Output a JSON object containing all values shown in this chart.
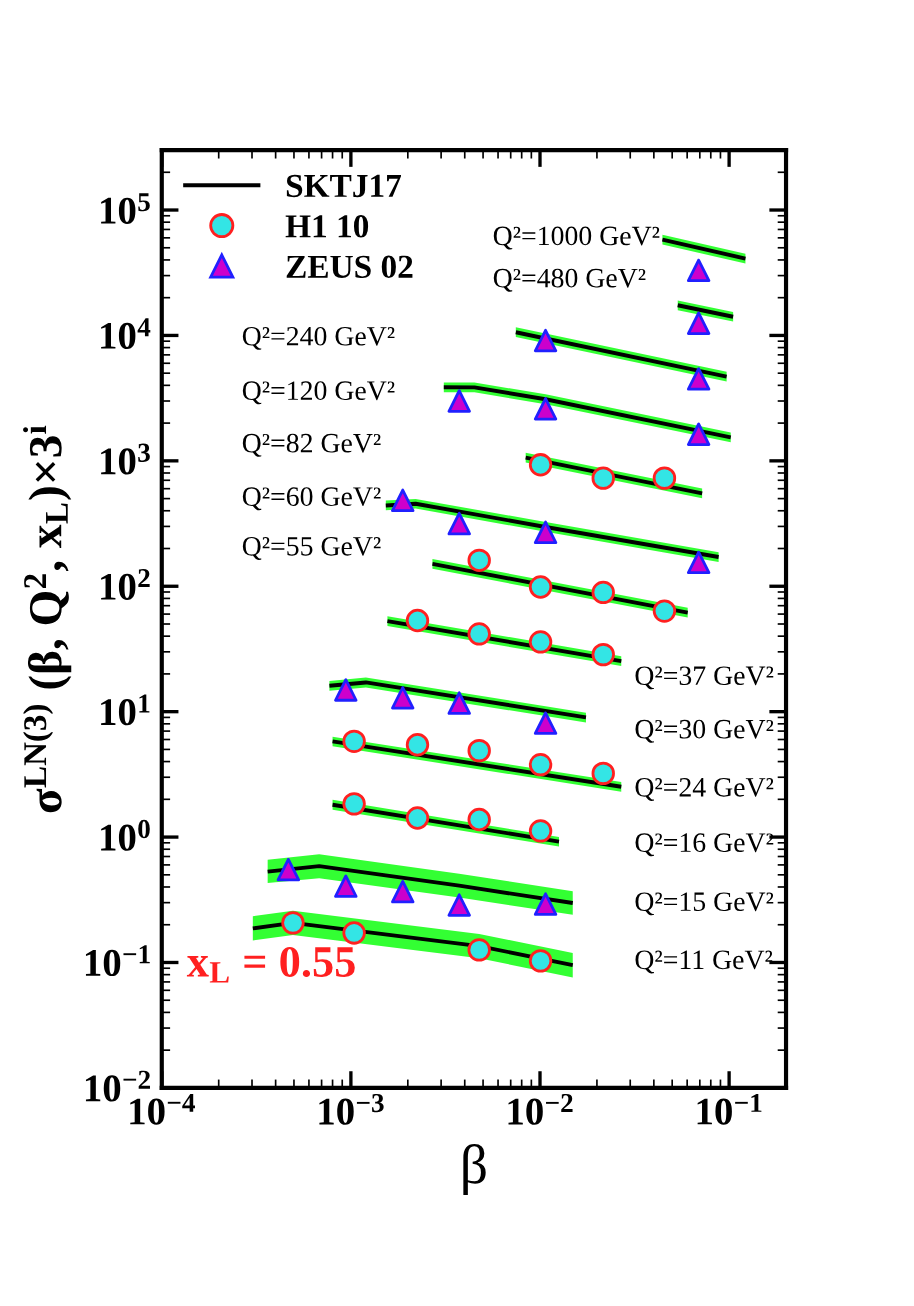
{
  "chart_data": {
    "type": "scatter",
    "xlabel": "β",
    "ylabel": "σ$^{LN(3)}$ (β, Q$^{2}$, x$_{L}$)×3$^{i}$",
    "log": "xy",
    "xlim": [
      0.0001,
      0.2
    ],
    "ylim": [
      0.01,
      300000
    ],
    "xticks": [
      {
        "value": 0.0001,
        "label": "10$^{−4}$"
      },
      {
        "value": 0.001,
        "label": "10$^{−3}$"
      },
      {
        "value": 0.01,
        "label": "10$^{−2}$"
      },
      {
        "value": 0.1,
        "label": "10$^{−1}$"
      }
    ],
    "yticks": [
      {
        "value": 0.01,
        "label": "10$^{−2}$"
      },
      {
        "value": 0.1,
        "label": "10$^{−1}$"
      },
      {
        "value": 1,
        "label": "10$^{0}$"
      },
      {
        "value": 10,
        "label": "10$^{1}$"
      },
      {
        "value": 100,
        "label": "10$^{2}$"
      },
      {
        "value": 1000,
        "label": "10$^{3}$"
      },
      {
        "value": 10000,
        "label": "10$^{4}$"
      },
      {
        "value": 100000,
        "label": "10$^{5}$"
      }
    ],
    "grid": false,
    "legend": "top left",
    "series": [
      {
        "name": "SKTJ17",
        "type": "line",
        "color": "#000000",
        "line_style": "solid",
        "x": [
          0.0444,
          0.122,
          null,
          0.0535,
          0.105,
          null,
          0.00745,
          0.097,
          null,
          0.0031,
          0.0045,
          0.0107,
          0.102,
          null,
          0.0084,
          0.072,
          null,
          0.00153,
          0.0022,
          0.0107,
          0.088,
          null,
          0.0027,
          0.0604,
          null,
          0.00156,
          0.0269,
          null,
          0.00077,
          0.0012,
          0.0175,
          null,
          0.0008,
          0.0269,
          null,
          0.0008,
          0.0126,
          null,
          0.000363,
          0.00068,
          0.00374,
          0.0149,
          null,
          0.000303,
          0.000494,
          0.00477,
          0.0149
        ],
        "values": [
          58000,
          41000,
          null,
          17400,
          14100,
          null,
          10600,
          4700,
          null,
          3860,
          3850,
          3100,
          1540,
          null,
          1060,
          550,
          null,
          441,
          455,
          297,
          171,
          null,
          151,
          61.6,
          null,
          52.7,
          25.3,
          null,
          16.1,
          17.1,
          9.0,
          null,
          5.8,
          2.52,
          null,
          1.81,
          0.92,
          null,
          0.53,
          0.586,
          0.41,
          0.298,
          null,
          0.187,
          0.207,
          0.135,
          0.0953
        ],
        "lower": [
          53000,
          37500,
          null,
          15900,
          12900,
          null,
          9700,
          4300,
          null,
          3530,
          3520,
          2830,
          1410,
          null,
          970,
          503,
          null,
          403,
          416,
          272,
          156,
          null,
          138,
          56.3,
          null,
          48.2,
          23.1,
          null,
          14.7,
          15.6,
          8.2,
          null,
          5.3,
          2.3,
          null,
          1.65,
          0.84,
          null,
          0.43,
          0.47,
          0.33,
          0.24,
          null,
          0.15,
          0.166,
          0.108,
          0.076
        ],
        "upper": [
          63500,
          44800,
          null,
          19000,
          15400,
          null,
          11600,
          5140,
          null,
          4220,
          4210,
          3390,
          1680,
          null,
          1160,
          601,
          null,
          482,
          497,
          325,
          187,
          null,
          165,
          67.3,
          null,
          57.6,
          27.7,
          null,
          17.6,
          18.7,
          9.8,
          null,
          6.3,
          2.75,
          null,
          1.98,
          1.0,
          null,
          0.66,
          0.73,
          0.51,
          0.37,
          null,
          0.234,
          0.259,
          0.169,
          0.119
        ]
      },
      {
        "name": "H1 10",
        "color": "#33e5e5",
        "marker": "circle",
        "x": [
          0.01007,
          0.0216,
          0.0455,
          0.00477,
          0.01007,
          0.0216,
          0.0455,
          0.00225,
          0.00477,
          0.01007,
          0.0216,
          0.00104,
          0.00225,
          0.00477,
          0.01007,
          0.0216,
          0.00104,
          0.00225,
          0.00477,
          0.01007,
          0.000494,
          0.00104,
          0.00477,
          0.01007
        ],
        "values": [
          930,
          728,
          728,
          161,
          98.6,
          89.3,
          63.4,
          53.3,
          41.7,
          36,
          28.5,
          5.8,
          5.45,
          4.89,
          3.78,
          3.22,
          1.84,
          1.42,
          1.38,
          1.12,
          0.207,
          0.172,
          0.126,
          0.103
        ]
      },
      {
        "name": "ZEUS 02",
        "color": "#cc00cc",
        "marker": "triangle",
        "x": [
          0.069,
          0.069,
          0.0107,
          0.069,
          0.00374,
          0.0107,
          0.069,
          0.00188,
          0.00374,
          0.0107,
          0.069,
          0.00094,
          0.00188,
          0.00374,
          0.0107,
          0.000467,
          0.00094,
          0.00188,
          0.00374,
          0.0107
        ],
        "values": [
          33000,
          12500,
          9100,
          4500,
          3000,
          2600,
          1630,
          484,
          316,
          269,
          155,
          14.9,
          12.9,
          11.7,
          8.1,
          0.55,
          0.406,
          0.367,
          0.287,
          0.292
        ]
      }
    ],
    "annotations": [
      "Q²=1000 GeV²",
      "Q²=480 GeV²",
      "Q²=240 GeV²",
      "Q²=120 GeV²",
      "Q²=82 GeV²",
      "Q²=60 GeV²",
      "Q²=55 GeV²",
      "Q²=37 GeV²",
      "Q²=30 GeV²",
      "Q²=24 GeV²",
      "Q²=16 GeV²",
      "Q²=15 GeV²",
      "Q²=11 GeV²",
      "x$_{L}$ = 0.55"
    ]
  }
}
